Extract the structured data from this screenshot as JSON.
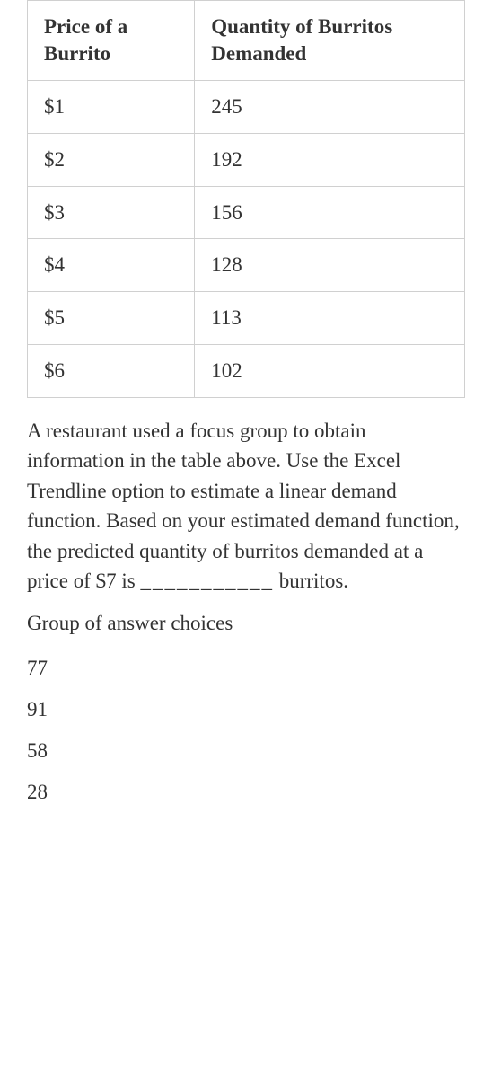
{
  "table": {
    "columns": [
      "Price of a Burrito",
      "Quantity of Burritos Demanded"
    ],
    "rows": [
      [
        "$1",
        "245"
      ],
      [
        "$2",
        "192"
      ],
      [
        "$3",
        "156"
      ],
      [
        "$4",
        "128"
      ],
      [
        "$5",
        "113"
      ],
      [
        "$6",
        "102"
      ]
    ],
    "border_color": "#d0d0d0",
    "header_fontweight": "bold",
    "cell_fontsize": 23
  },
  "question": {
    "text_before_blank": "A restaurant used a focus group to obtain information in the table above. Use the Excel Trendline option to estimate a linear demand function. Based on your estimated demand function, the predicted quantity of burritos demanded at a price of $7 is ",
    "blank": "___________",
    "text_after_blank": " burritos."
  },
  "group_label": "Group of answer choices",
  "choices": [
    "77",
    "91",
    "58",
    "28"
  ],
  "colors": {
    "background": "#ffffff",
    "text": "#333333",
    "border": "#d0d0d0"
  }
}
